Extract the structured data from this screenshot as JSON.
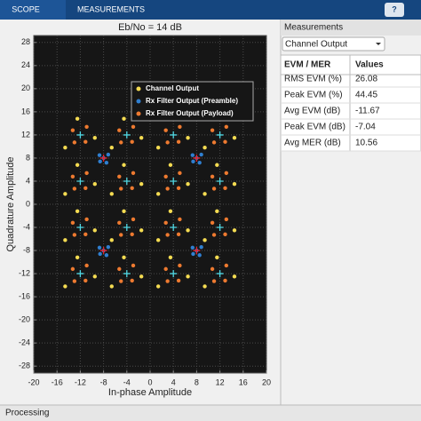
{
  "toolbar": {
    "tabs": [
      "SCOPE",
      "MEASUREMENTS"
    ]
  },
  "chart_data": {
    "type": "scatter",
    "title": "Eb/No = 14 dB",
    "x_label": "In-phase Amplitude",
    "y_label": "Quadrature Amplitude",
    "xlim": [
      -20,
      20
    ],
    "xticks": [
      -20,
      -16,
      -12,
      -8,
      -4,
      0,
      4,
      8,
      12,
      16,
      20
    ],
    "ylim": [
      -29.2,
      29.2
    ],
    "yticks": [
      -28,
      -24,
      -20,
      -16,
      -12,
      -8,
      -4,
      0,
      4,
      8,
      12,
      16,
      20,
      24,
      28
    ],
    "grid": true,
    "legend": "upper right",
    "series": [
      {
        "name": "Channel Output",
        "color": "#f5dc52",
        "x": [
          -9.5,
          -12.5,
          -14.6,
          -1.5,
          -4.5,
          -6.6,
          6.5,
          3.5,
          1.4,
          14.5,
          11.5,
          9.4,
          -9.5,
          -12.5,
          -14.6,
          -1.5,
          -4.5,
          -6.6,
          6.5,
          3.5,
          1.4,
          14.5,
          11.5,
          9.4,
          -9.5,
          -12.5,
          -14.6,
          -1.5,
          -4.5,
          -6.6,
          6.5,
          3.5,
          1.4,
          14.5,
          11.5,
          9.4,
          -9.5,
          -12.5,
          -14.6,
          -1.5,
          -4.5,
          -6.6,
          6.5,
          3.5,
          1.4,
          14.5,
          11.5,
          9.4
        ],
        "values": [
          11.5,
          14.8,
          9.8,
          11.5,
          14.8,
          9.8,
          11.5,
          14.8,
          9.8,
          11.5,
          14.8,
          9.8,
          3.5,
          6.8,
          1.8,
          3.5,
          6.8,
          1.8,
          3.5,
          6.8,
          1.8,
          3.5,
          6.8,
          1.8,
          -4.5,
          -1.2,
          -6.2,
          -4.5,
          -1.2,
          -6.2,
          -4.5,
          -1.2,
          -6.2,
          -4.5,
          -1.2,
          -6.2,
          -12.5,
          -9.2,
          -14.2,
          -12.5,
          -9.2,
          -14.2,
          -12.5,
          -9.2,
          -14.2,
          -12.5,
          -9.2,
          -14.2
        ]
      },
      {
        "name": "Rx Filter Output (Preamble)",
        "color": "#2f7fd0",
        "x": [
          -8,
          -7.2,
          -8.7,
          -7.5,
          -8.6,
          8,
          8.8,
          7.3,
          8.5,
          7.4,
          -8,
          -7.2,
          -8.7,
          -7.5,
          -8.6,
          8,
          8.8,
          7.3,
          8.5,
          7.4
        ],
        "values": [
          8,
          8.6,
          8.5,
          7.2,
          7.4,
          8,
          8.6,
          8.5,
          7.2,
          7.4,
          -8,
          -7.4,
          -7.5,
          -8.8,
          -8.6,
          -8,
          -7.4,
          -7.5,
          -8.8,
          -8.6
        ]
      },
      {
        "name": "Rx Filter Output (Payload)",
        "color": "#ee7a30",
        "x": [
          -13.3,
          -10.9,
          -11.1,
          -13,
          -5.3,
          -2.9,
          -3.1,
          -5,
          2.7,
          5.1,
          4.9,
          3,
          10.7,
          13.1,
          12.9,
          11,
          -13.3,
          -10.9,
          -11.1,
          -13,
          -5.3,
          -2.9,
          -3.1,
          -5,
          2.7,
          5.1,
          4.9,
          3,
          10.7,
          13.1,
          12.9,
          11,
          -13.3,
          -10.9,
          -11.1,
          -13,
          -5.3,
          -2.9,
          -3.1,
          -5,
          2.7,
          5.1,
          4.9,
          3,
          10.7,
          13.1,
          12.9,
          11,
          -13.3,
          -10.9,
          -11.1,
          -13,
          -5.3,
          -2.9,
          -3.1,
          -5,
          2.7,
          5.1,
          4.9,
          3,
          10.7,
          13.1,
          12.9,
          11
        ],
        "values": [
          12.8,
          13.4,
          10.8,
          10.7,
          12.8,
          13.4,
          10.8,
          10.7,
          12.8,
          13.4,
          10.8,
          10.7,
          12.8,
          13.4,
          10.8,
          10.7,
          4.8,
          5.4,
          2.8,
          2.7,
          4.8,
          5.4,
          2.8,
          2.7,
          4.8,
          5.4,
          2.8,
          2.7,
          4.8,
          5.4,
          2.8,
          2.7,
          -3.2,
          -2.6,
          -5.2,
          -5.3,
          -3.2,
          -2.6,
          -5.2,
          -5.3,
          -3.2,
          -2.6,
          -5.2,
          -5.3,
          -3.2,
          -2.6,
          -5.2,
          -5.3,
          -11.2,
          -10.6,
          -13.2,
          -13.3,
          -11.2,
          -10.6,
          -13.2,
          -13.3,
          -11.2,
          -10.6,
          -13.2,
          -13.3,
          -11.2,
          -10.6,
          -13.2,
          -13.3
        ]
      }
    ],
    "references": [
      {
        "color": "#4fd6e2",
        "x": [
          -12,
          -4,
          4,
          12,
          -12,
          -4,
          4,
          12,
          -12,
          -4,
          4,
          12,
          -12,
          -4,
          4,
          12
        ],
        "values": [
          12,
          12,
          12,
          12,
          4,
          4,
          4,
          4,
          -4,
          -4,
          -4,
          -4,
          -12,
          -12,
          -12,
          -12
        ]
      },
      {
        "color": "#e8202a",
        "x": [
          -8,
          8,
          -8,
          8
        ],
        "values": [
          8,
          8,
          -8,
          -8
        ]
      }
    ]
  },
  "measurements": {
    "title": "Measurements",
    "selector": "Channel Output",
    "header": [
      "EVM / MER",
      "Values"
    ],
    "rows": [
      [
        "RMS EVM (%)",
        26.08
      ],
      [
        "Peak EVM (%)",
        44.45
      ],
      [
        "Avg EVM (dB)",
        -11.67
      ],
      [
        "Peak EVM (dB)",
        -7.04
      ],
      [
        "Avg MER (dB)",
        10.56
      ]
    ]
  },
  "status": "Processing"
}
